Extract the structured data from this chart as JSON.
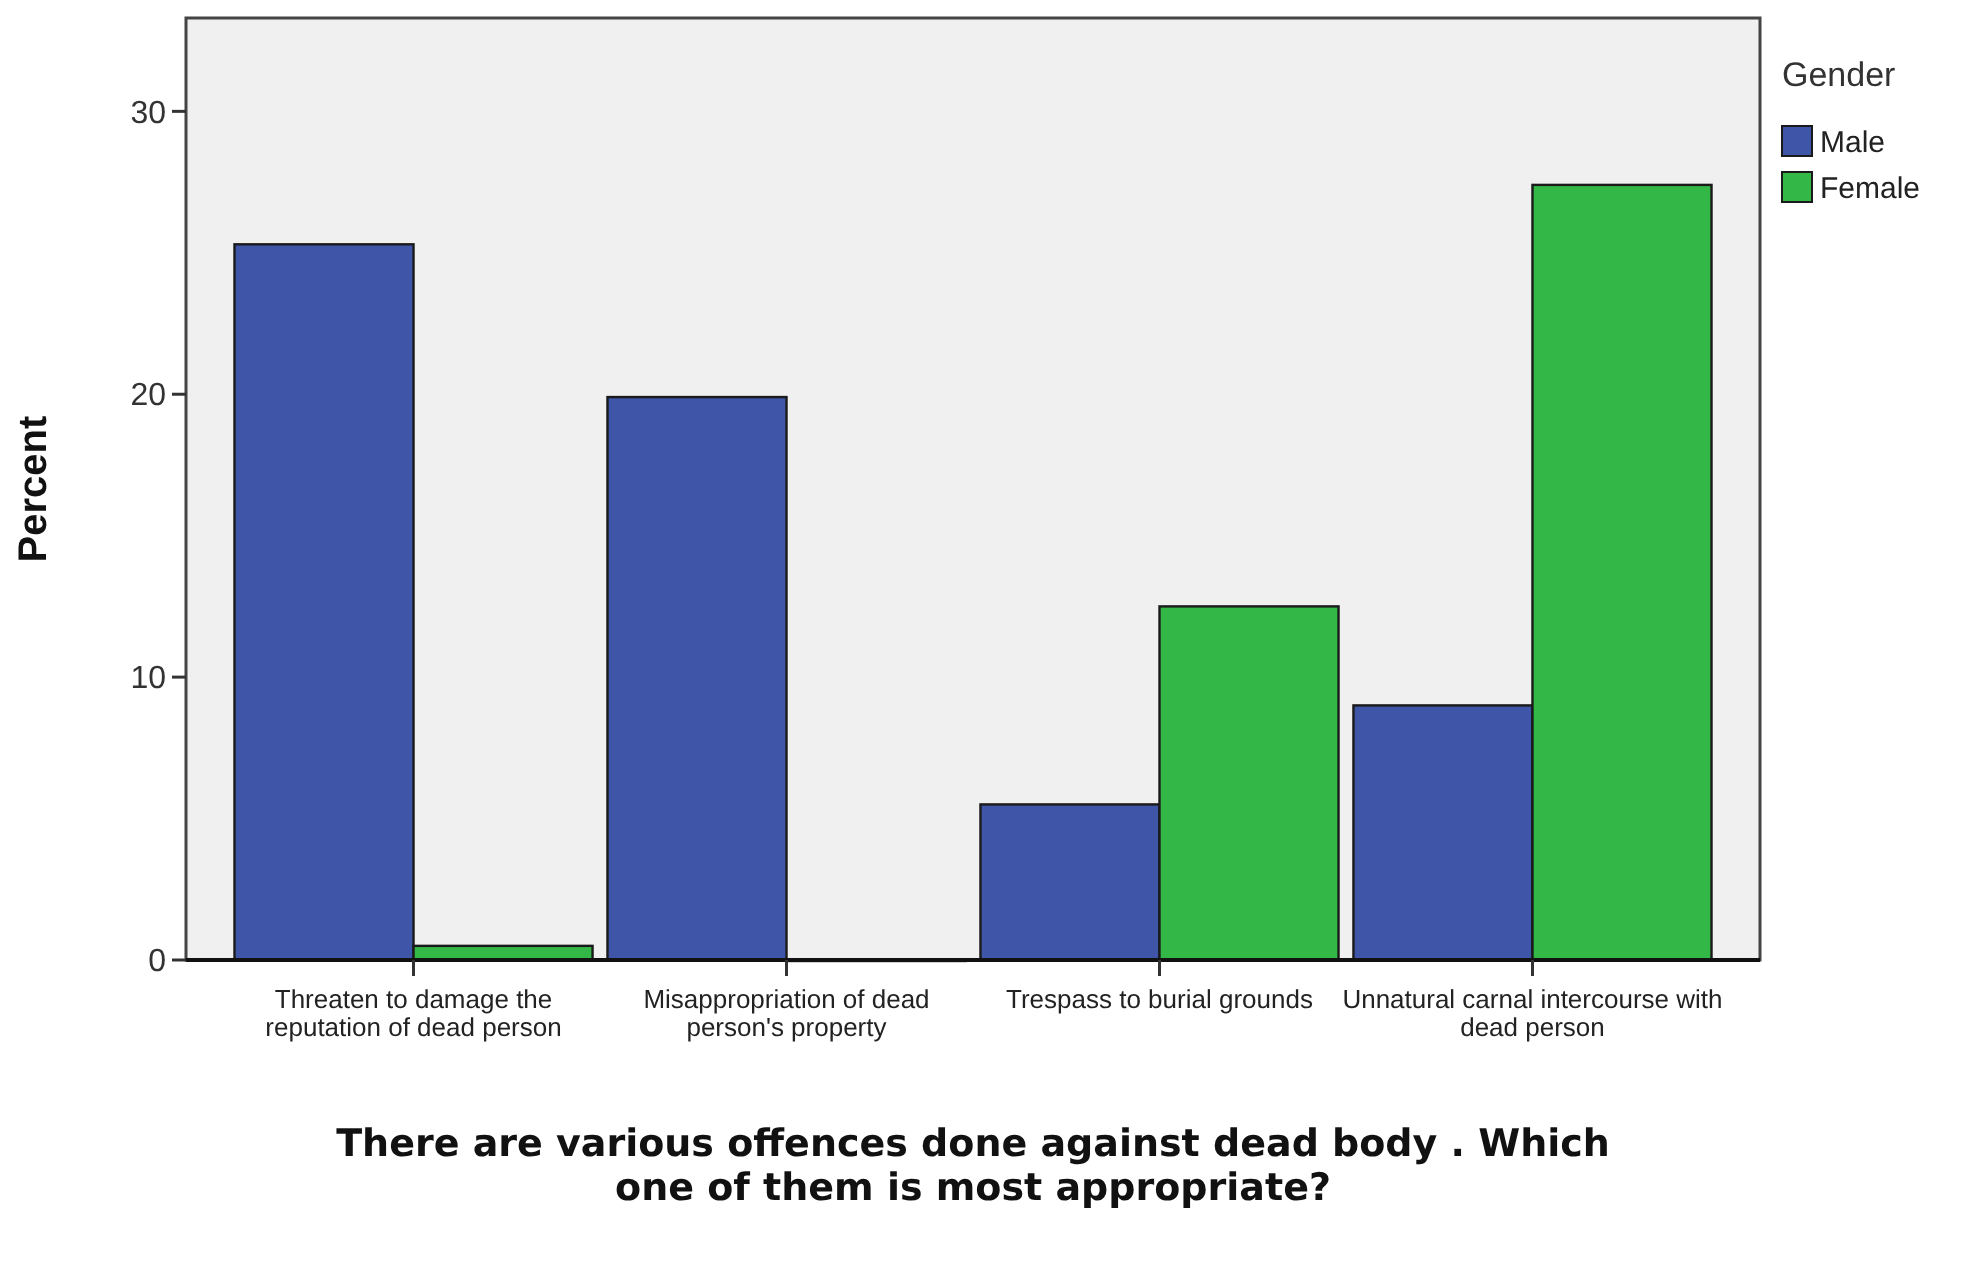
{
  "chart_data": {
    "type": "bar",
    "xlabel": "There are various offences done against dead body . Which one of them is most appropriate?",
    "ylabel": "Percent",
    "legend_title": "Gender",
    "categories": [
      "Threaten to damage the reputation of dead person",
      "Misappropriation of dead person's property",
      "Trespass to burial grounds",
      "Unnatural carnal intercourse with dead person"
    ],
    "series": [
      {
        "name": "Male",
        "color": "#3f55a8",
        "values": [
          25.3,
          19.9,
          5.5,
          9.0
        ]
      },
      {
        "name": "Female",
        "color": "#33b847",
        "values": [
          0.5,
          0,
          12.5,
          27.4
        ]
      }
    ],
    "ylim": [
      0,
      33.3
    ],
    "yticks": [
      0,
      10,
      20,
      30
    ],
    "grid": false,
    "legend": "top right"
  }
}
